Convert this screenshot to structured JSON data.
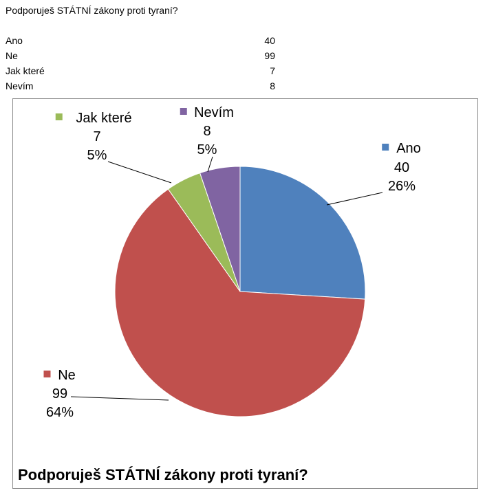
{
  "sheet": {
    "question": "Podporuješ STÁTNÍ zákony proti tyraní?",
    "rows": [
      {
        "category": "Ano",
        "value": "40"
      },
      {
        "category": "Ne",
        "value": "99"
      },
      {
        "category": "Jak které",
        "value": "7"
      },
      {
        "category": "Nevím",
        "value": "8"
      }
    ]
  },
  "chart_data": {
    "type": "pie",
    "title": "Podporuješ STÁTNÍ zákony proti tyraní?",
    "categories": [
      "Ano",
      "Ne",
      "Jak které",
      "Nevím"
    ],
    "values": [
      40,
      99,
      7,
      8
    ],
    "percent_labels": [
      "26%",
      "64%",
      "5%",
      "5%"
    ],
    "colors": [
      "#4f81bd",
      "#c0504d",
      "#9bbb59",
      "#8064a2"
    ],
    "start_angle_deg": 0,
    "direction": "clockwise",
    "data_labels": "category, value, percentage"
  }
}
